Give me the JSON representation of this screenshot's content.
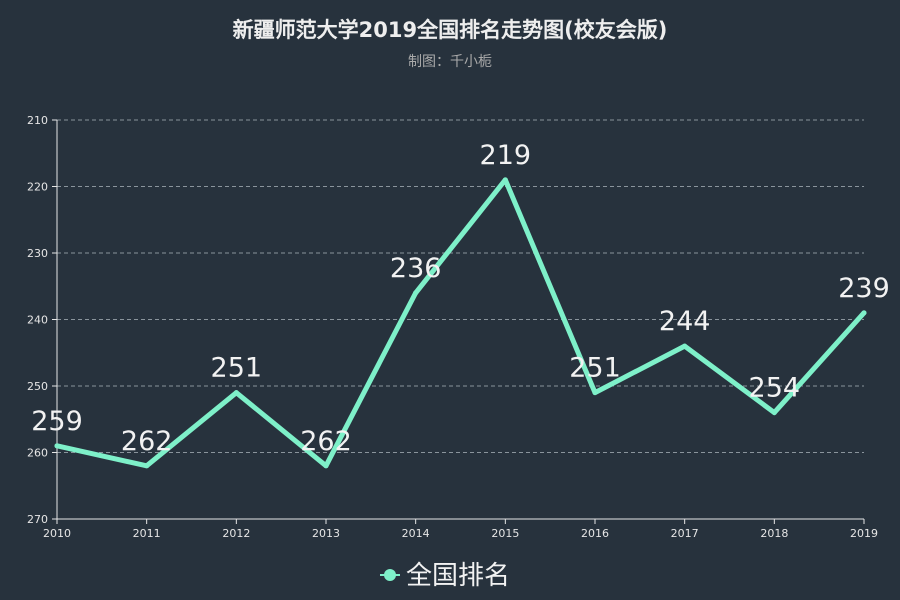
{
  "chart_data": {
    "type": "line",
    "title": "新疆师范大学2019全国排名走势图(校友会版)",
    "subtitle": "制图：千小栀",
    "categories": [
      "2010",
      "2011",
      "2012",
      "2013",
      "2014",
      "2015",
      "2016",
      "2017",
      "2018",
      "2019"
    ],
    "series": [
      {
        "name": "全国排名",
        "values": [
          259,
          262,
          251,
          262,
          236,
          219,
          251,
          244,
          254,
          239
        ]
      }
    ],
    "y_ticks": [
      "210",
      "220",
      "230",
      "240",
      "250",
      "260",
      "270"
    ],
    "ylim": [
      210,
      270
    ],
    "y_inverted": true,
    "grid": true,
    "legend_position": "bottom-center",
    "colors": {
      "line": "#7ef0c9",
      "background": "#27323d",
      "grid": "#8a949c",
      "text": "#e6e6e6"
    }
  }
}
